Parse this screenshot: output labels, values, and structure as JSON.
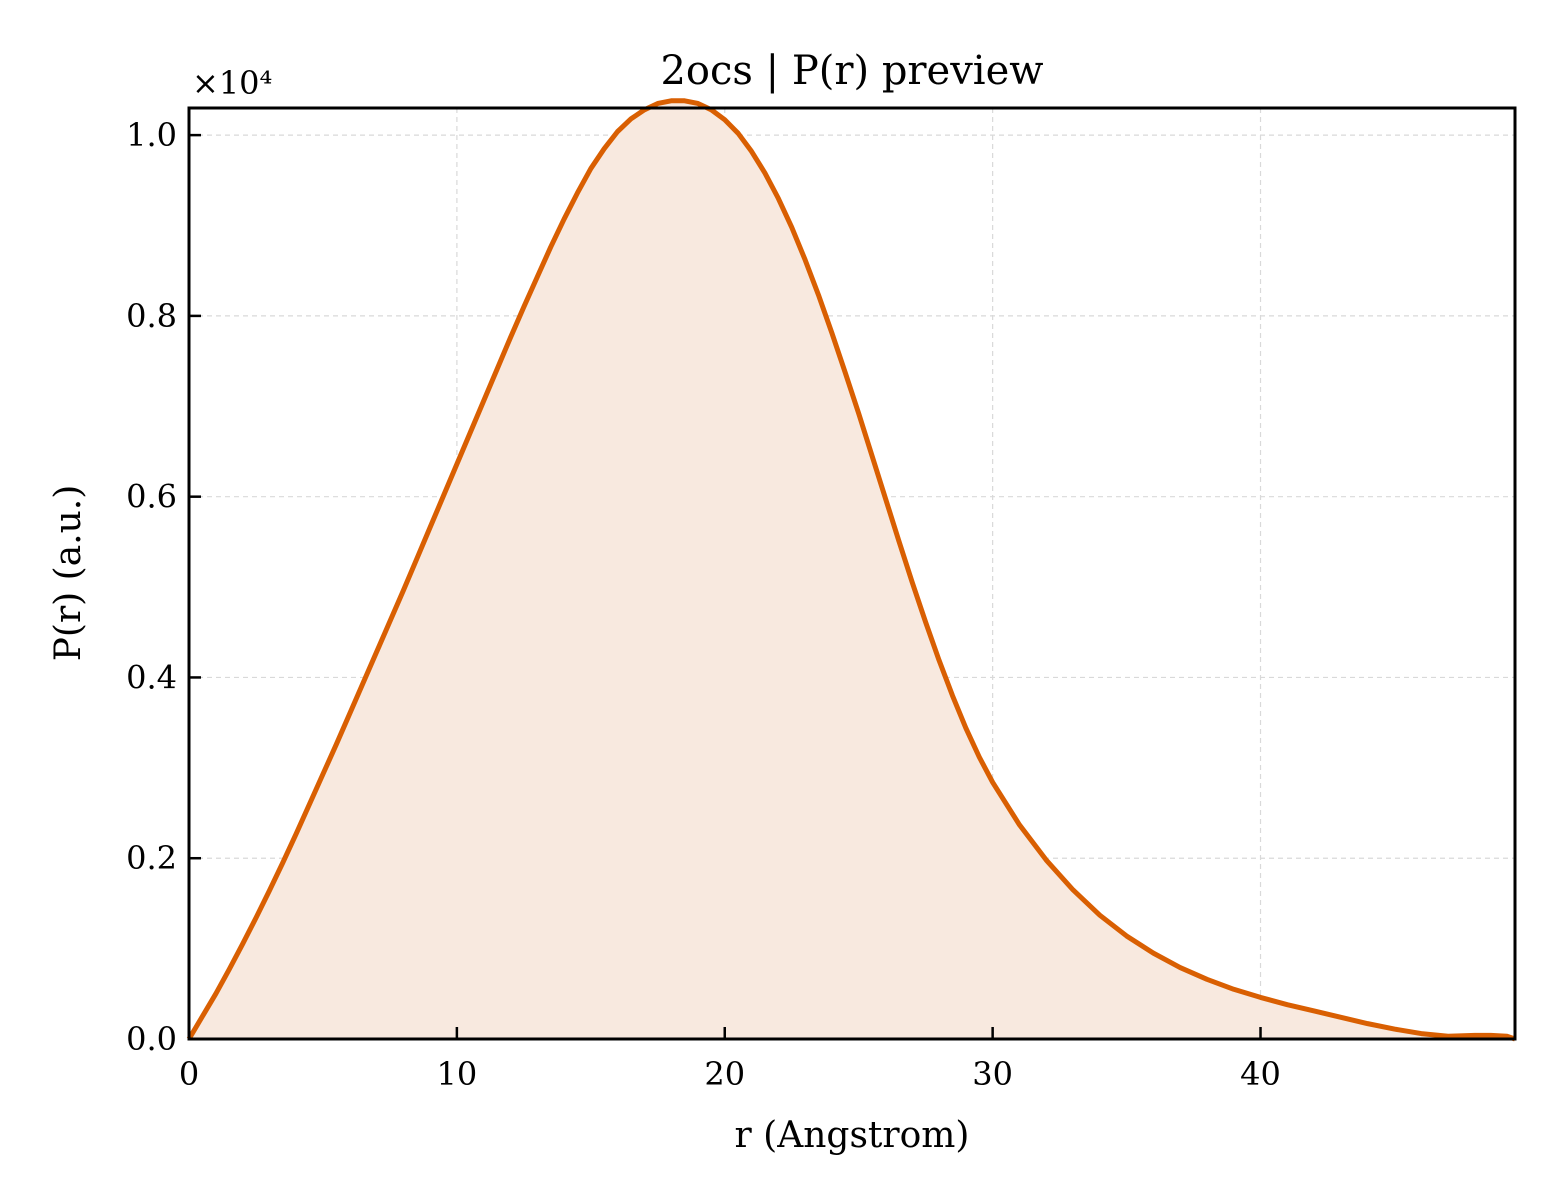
{
  "chart_data": {
    "type": "area",
    "title": "2ocs | P(r) preview",
    "xlabel": "r (Angstrom)",
    "ylabel": "P(r) (a.u.)",
    "y_offset_label": "×10⁴",
    "xlim": [
      0,
      49.5
    ],
    "ylim": [
      0,
      1.03
    ],
    "xticks": [
      0,
      10,
      20,
      30,
      40
    ],
    "xtick_labels": [
      "0",
      "10",
      "20",
      "30",
      "40"
    ],
    "yticks": [
      0.0,
      0.2,
      0.4,
      0.6,
      0.8,
      1.0
    ],
    "ytick_labels": [
      "0.0",
      "0.2",
      "0.4",
      "0.6",
      "0.8",
      "1.0"
    ],
    "grid": true,
    "line_color": "#d95f02",
    "fill_color": "#f8e9df",
    "series": [
      {
        "x": [
          0,
          0.5,
          1,
          1.5,
          2,
          2.5,
          3,
          3.5,
          4,
          4.5,
          5,
          5.5,
          6,
          6.5,
          7,
          7.5,
          8,
          8.5,
          9,
          9.5,
          10,
          10.5,
          11,
          11.5,
          12,
          12.5,
          13,
          13.5,
          14,
          14.5,
          15,
          15.5,
          16,
          16.5,
          17,
          17.5,
          18,
          18.5,
          19,
          19.5,
          20,
          20.5,
          21,
          21.5,
          22,
          22.5,
          23,
          23.5,
          24,
          24.5,
          25,
          25.5,
          26,
          26.5,
          27,
          27.5,
          28,
          28.5,
          29,
          29.5,
          30,
          31,
          32,
          33,
          34,
          35,
          36,
          37,
          38,
          39,
          40,
          41,
          42,
          43,
          44,
          45,
          46,
          47,
          48,
          48.6,
          49.2,
          49.5
        ],
        "y": [
          0.0,
          0.025,
          0.05,
          0.077,
          0.105,
          0.134,
          0.164,
          0.195,
          0.227,
          0.26,
          0.293,
          0.326,
          0.36,
          0.394,
          0.428,
          0.462,
          0.496,
          0.531,
          0.566,
          0.601,
          0.636,
          0.671,
          0.706,
          0.741,
          0.776,
          0.81,
          0.843,
          0.876,
          0.907,
          0.936,
          0.963,
          0.985,
          1.004,
          1.018,
          1.028,
          1.035,
          1.038,
          1.038,
          1.035,
          1.028,
          1.017,
          1.002,
          0.982,
          0.958,
          0.93,
          0.898,
          0.862,
          0.823,
          0.781,
          0.737,
          0.692,
          0.645,
          0.598,
          0.551,
          0.505,
          0.461,
          0.419,
          0.38,
          0.344,
          0.312,
          0.284,
          0.237,
          0.198,
          0.165,
          0.137,
          0.114,
          0.095,
          0.079,
          0.066,
          0.055,
          0.046,
          0.038,
          0.031,
          0.024,
          0.017,
          0.011,
          0.006,
          0.003,
          0.004,
          0.004,
          0.003,
          0.0
        ]
      }
    ]
  }
}
